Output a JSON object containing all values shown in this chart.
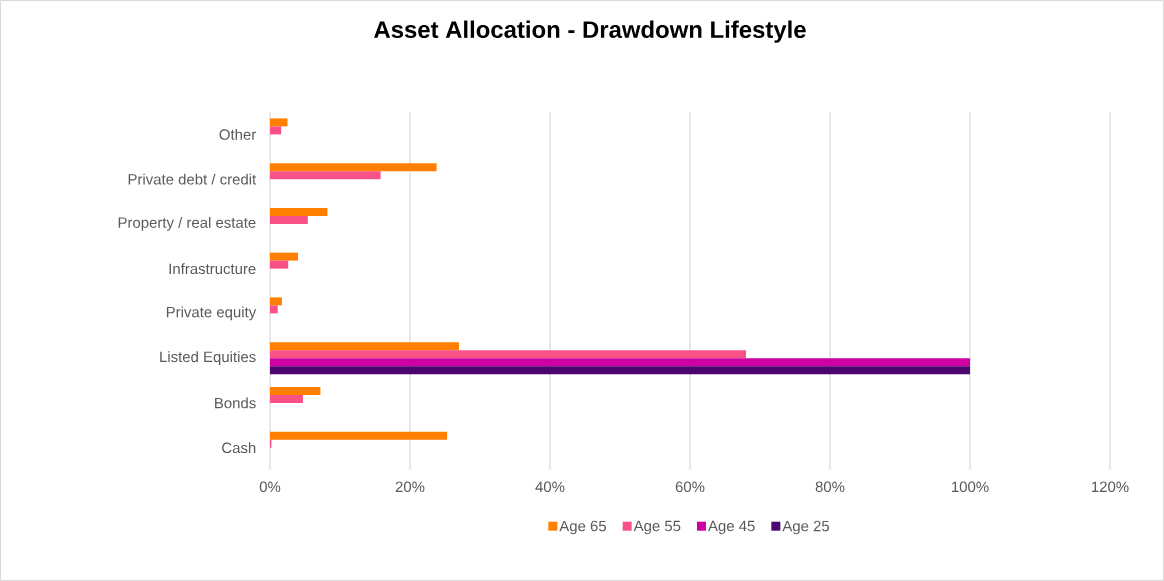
{
  "chart_data": {
    "type": "bar",
    "orientation": "horizontal",
    "title": "Asset Allocation - Drawdown Lifestyle",
    "categories": [
      "Other",
      "Private debt / credit",
      "Property / real estate",
      "Infrastructure",
      "Private equity",
      "Listed Equities",
      "Bonds",
      "Cash"
    ],
    "series": [
      {
        "name": "Age 65",
        "color": "#ff8000",
        "values": [
          2.5,
          23.8,
          8.2,
          4.0,
          1.7,
          27,
          7.2,
          25.3
        ]
      },
      {
        "name": "Age 55",
        "color": "#f75185",
        "values": [
          1.6,
          15.8,
          5.4,
          2.6,
          1.1,
          68,
          4.7,
          0.2
        ]
      },
      {
        "name": "Age 45",
        "color": "#cc00a3",
        "values": [
          0,
          0,
          0,
          0,
          0,
          100,
          0,
          0
        ]
      },
      {
        "name": "Age 25",
        "color": "#4d0670",
        "values": [
          0,
          0,
          0,
          0,
          0,
          100,
          0,
          0
        ]
      }
    ],
    "xlim": [
      0,
      120
    ],
    "xticks": [
      {
        "value": 0,
        "label": "0%"
      },
      {
        "value": 20,
        "label": "20%"
      },
      {
        "value": 40,
        "label": "40%"
      },
      {
        "value": 60,
        "label": "60%"
      },
      {
        "value": 80,
        "label": "80%"
      },
      {
        "value": 100,
        "label": "100%"
      },
      {
        "value": 120,
        "label": "120%"
      }
    ],
    "grid": "x",
    "legend": "bottom"
  }
}
